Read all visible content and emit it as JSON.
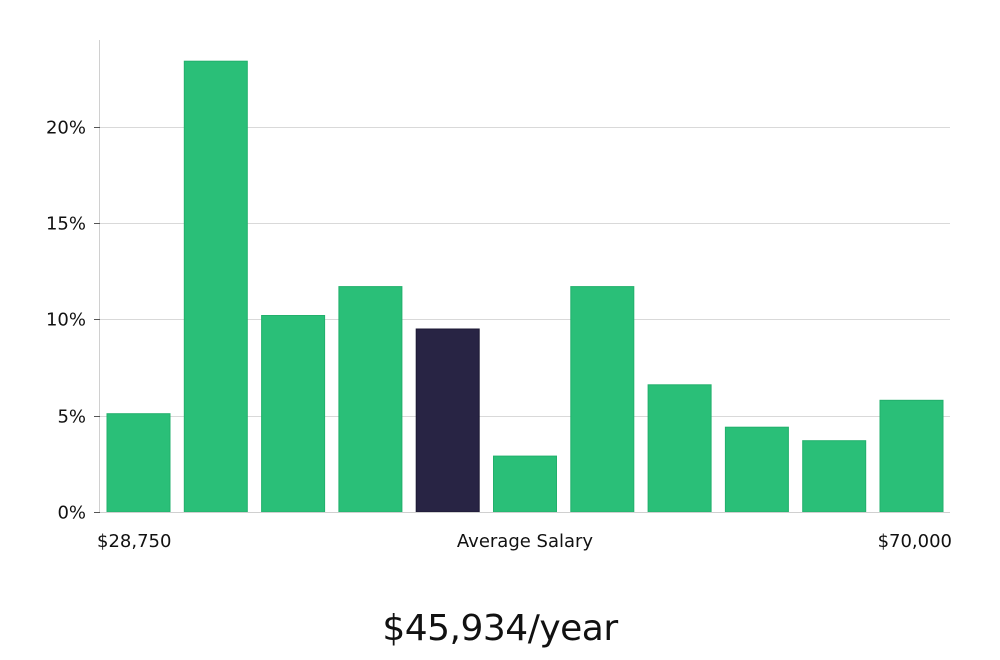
{
  "chart_data": {
    "type": "bar",
    "title": "",
    "xlabel": "Average Salary",
    "ylabel": "",
    "x_range_labels": {
      "min": "$28,750",
      "max": "$70,000"
    },
    "ylim": [
      0,
      24.5
    ],
    "yticks": [
      0,
      5,
      10,
      15,
      20
    ],
    "ytick_labels": [
      "0%",
      "5%",
      "10%",
      "15%",
      "20%"
    ],
    "grid": true,
    "values": [
      5.1,
      23.4,
      10.2,
      11.7,
      9.5,
      2.9,
      11.7,
      6.6,
      4.4,
      3.7,
      5.8
    ],
    "highlight_index": 4,
    "colors": {
      "bar": "#2abf78",
      "bar_edge": "#22b06c",
      "highlight": "#282444",
      "grid": "#d9d9d9",
      "axis": "#d0d0d0"
    }
  },
  "summary": {
    "salary_text": "$45,934/year"
  }
}
